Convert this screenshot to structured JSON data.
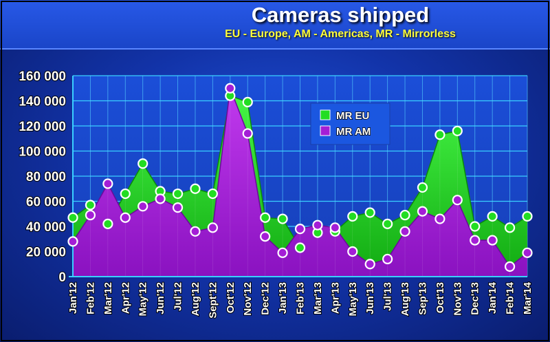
{
  "header": {
    "title": "Cameras shipped",
    "subtitle": "EU - Europe, AM - Americas, MR - Mirrorless"
  },
  "colors": {
    "eu": "#22dd22",
    "am": "#a41ed6",
    "grid": "#3ad0ff",
    "text": "#ffffff"
  },
  "chart_data": {
    "type": "area",
    "title": "Cameras shipped",
    "subtitle": "EU - Europe, AM - Americas, MR - Mirrorless",
    "legend_position": "top-right",
    "grid": true,
    "ylim": [
      0,
      160000
    ],
    "yticks": [
      0,
      20000,
      40000,
      60000,
      80000,
      100000,
      120000,
      140000,
      160000
    ],
    "ytick_labels": [
      "0",
      "20 000",
      "40 000",
      "60 000",
      "80 000",
      "100 000",
      "120 000",
      "140 000",
      "160 000"
    ],
    "categories": [
      "Jan'12",
      "Feb'12",
      "Mar'12",
      "Apr'12",
      "May'12",
      "Jun'12",
      "Jul'12",
      "Aug'12",
      "Sept'12",
      "Oct'12",
      "Nov'12",
      "Dec'12",
      "Jan'13",
      "Feb'13",
      "Mar'13",
      "Apr'13",
      "May'13",
      "Jun'13",
      "Jul'13",
      "Aug'13",
      "Sep'13",
      "Oct'13",
      "Nov'13",
      "Dec'13",
      "Jan'14",
      "Feb'14",
      "Mar'14"
    ],
    "series": [
      {
        "name": "MR EU",
        "values": [
          47000,
          57000,
          42000,
          66000,
          90000,
          68000,
          66000,
          70000,
          66000,
          144000,
          139000,
          47000,
          46000,
          23000,
          35000,
          36000,
          48000,
          51000,
          42000,
          49000,
          71000,
          113000,
          116000,
          40000,
          48000,
          39000,
          48000
        ]
      },
      {
        "name": "MR AM",
        "values": [
          28000,
          49000,
          74000,
          47000,
          56000,
          62000,
          55000,
          36000,
          39000,
          150000,
          114000,
          32000,
          19000,
          38000,
          41000,
          39000,
          20000,
          10000,
          14000,
          36000,
          52000,
          46000,
          61000,
          29000,
          29000,
          8000,
          19000
        ]
      }
    ]
  }
}
